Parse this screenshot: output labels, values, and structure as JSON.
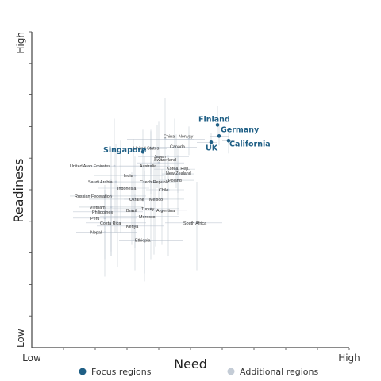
{
  "chart_data": {
    "type": "scatter",
    "xlabel": "Need",
    "ylabel": "Readiness",
    "xlim": [
      0,
      10
    ],
    "ylim": [
      0,
      10
    ],
    "x_ticks": [
      {
        "value": 0,
        "label": "Low"
      },
      {
        "value": 5,
        "label": "Need"
      },
      {
        "value": 10,
        "label": "High"
      }
    ],
    "y_ticks": [
      {
        "value": 0,
        "label": "Low"
      },
      {
        "value": 10,
        "label": "High"
      }
    ],
    "colors": {
      "focus": "#1f5f85",
      "additional": "#c4ccd6",
      "axis": "#444444",
      "error": "#b4bec9"
    },
    "legend": {
      "position": "bottom",
      "entries": [
        {
          "name": "Focus regions",
          "group": "focus"
        },
        {
          "name": "Additional regions",
          "group": "additional"
        }
      ]
    },
    "series": [
      {
        "name": "Focus regions",
        "group": "focus",
        "points": [
          {
            "label": "Finland",
            "x": 5.85,
            "y": 7.05,
            "xerr": [
              0.1,
              0.1
            ],
            "yerr": [
              0.3,
              0.6
            ]
          },
          {
            "label": "Germany",
            "x": 5.9,
            "y": 6.7,
            "xerr": [
              0.3,
              0.3
            ],
            "yerr": [
              0.3,
              0.4
            ]
          },
          {
            "label": "UK",
            "x": 5.65,
            "y": 6.5,
            "xerr": [
              0.45,
              0.2
            ],
            "yerr": [
              0.2,
              0.3
            ]
          },
          {
            "label": "California",
            "x": 6.2,
            "y": 6.55,
            "xerr": [
              0.2,
              0.2
            ],
            "yerr": [
              0.4,
              0.3
            ]
          },
          {
            "label": "Singapore",
            "x": 3.5,
            "y": 6.2,
            "xerr": [
              0.7,
              0.6
            ],
            "yerr": [
              1.6,
              0.7
            ]
          }
        ]
      },
      {
        "name": "Additional regions",
        "group": "additional",
        "points": [
          {
            "label": "China",
            "x": 4.2,
            "y": 6.6,
            "xerr": [
              1.2,
              0.9
            ],
            "yerr": [
              1.3,
              1.3
            ]
          },
          {
            "label": "Norway",
            "x": 4.95,
            "y": 6.6,
            "xerr": [
              0.8,
              0.5
            ],
            "yerr": [
              0.5,
              0.4
            ]
          },
          {
            "label": "United States",
            "x": 3.75,
            "y": 6.3,
            "xerr": [
              0.8,
              0.5
            ],
            "yerr": [
              0.8,
              0.6
            ]
          },
          {
            "label": "Canada",
            "x": 4.5,
            "y": 6.35,
            "xerr": [
              0.8,
              0.7
            ],
            "yerr": [
              0.7,
              0.9
            ]
          },
          {
            "label": "Japan",
            "x": 3.95,
            "y": 6.05,
            "xerr": [
              0.6,
              1.0
            ],
            "yerr": [
              1.0,
              1.0
            ]
          },
          {
            "label": "Switzerland",
            "x": 4.0,
            "y": 5.85,
            "xerr": [
              0.7,
              0.8
            ],
            "yerr": [
              1.1,
              1.3
            ]
          },
          {
            "label": "United Arab Emirates",
            "x": 2.6,
            "y": 5.75,
            "xerr": [
              0.9,
              0.8
            ],
            "yerr": [
              2.1,
              1.5
            ]
          },
          {
            "label": "Australia",
            "x": 3.75,
            "y": 5.75,
            "xerr": [
              1.0,
              0.6
            ],
            "yerr": [
              0.9,
              1.1
            ]
          },
          {
            "label": "Korea, Rep.",
            "x": 4.55,
            "y": 5.65,
            "xerr": [
              0.7,
              0.6
            ],
            "yerr": [
              0.6,
              1.1
            ]
          },
          {
            "label": "New Zealand",
            "x": 4.6,
            "y": 5.5,
            "xerr": [
              0.5,
              0.5
            ],
            "yerr": [
              0.6,
              0.8
            ]
          },
          {
            "label": "India",
            "x": 3.25,
            "y": 5.45,
            "xerr": [
              1.3,
              0.9
            ],
            "yerr": [
              2.3,
              0.6
            ]
          },
          {
            "label": "Saudi Arabia",
            "x": 2.65,
            "y": 5.25,
            "xerr": [
              0.8,
              0.6
            ],
            "yerr": [
              1.6,
              1.2
            ]
          },
          {
            "label": "Czech Republic",
            "x": 3.85,
            "y": 5.25,
            "xerr": [
              0.6,
              0.7
            ],
            "yerr": [
              2.3,
              0.7
            ]
          },
          {
            "label": "Poland",
            "x": 4.6,
            "y": 5.3,
            "xerr": [
              0.6,
              0.5
            ],
            "yerr": [
              1.1,
              0.8
            ]
          },
          {
            "label": "Indonesia",
            "x": 2.8,
            "y": 5.05,
            "xerr": [
              0.7,
              0.9
            ],
            "yerr": [
              1.4,
              1.5
            ]
          },
          {
            "label": "Chile",
            "x": 4.3,
            "y": 5.0,
            "xerr": [
              0.7,
              0.5
            ],
            "yerr": [
              2.1,
              1.1
            ]
          },
          {
            "label": "Russian Federation",
            "x": 2.5,
            "y": 4.8,
            "xerr": [
              1.3,
              1.1
            ],
            "yerr": [
              1.9,
              1.5
            ]
          },
          {
            "label": "Ukraine",
            "x": 3.2,
            "y": 4.7,
            "xerr": [
              1.4,
              1.1
            ],
            "yerr": [
              1.3,
              1.9
            ]
          },
          {
            "label": "Mexico",
            "x": 3.9,
            "y": 4.7,
            "xerr": [
              1.0,
              0.9
            ],
            "yerr": [
              1.5,
              1.4
            ]
          },
          {
            "label": "Vietnam",
            "x": 2.5,
            "y": 4.45,
            "xerr": [
              1.0,
              1.0
            ],
            "yerr": [
              1.4,
              0.9
            ]
          },
          {
            "label": "Philippines",
            "x": 2.5,
            "y": 4.3,
            "xerr": [
              1.2,
              1.0
            ],
            "yerr": [
              1.4,
              1.0
            ]
          },
          {
            "label": "Brazil",
            "x": 3.15,
            "y": 4.35,
            "xerr": [
              1.2,
              1.2
            ],
            "yerr": [
              1.1,
              1.2
            ]
          },
          {
            "label": "Turkey",
            "x": 3.75,
            "y": 4.4,
            "xerr": [
              1.5,
              0.9
            ],
            "yerr": [
              1.6,
              1.5
            ]
          },
          {
            "label": "Argentina",
            "x": 4.1,
            "y": 4.35,
            "xerr": [
              0.5,
              0.8
            ],
            "yerr": [
              1.1,
              1.3
            ]
          },
          {
            "label": "Morocco",
            "x": 3.55,
            "y": 4.15,
            "xerr": [
              1.4,
              1.1
            ],
            "yerr": [
              1.8,
              1.9
            ]
          },
          {
            "label": "Peru",
            "x": 2.3,
            "y": 4.1,
            "xerr": [
              1.0,
              1.0
            ],
            "yerr": [
              1.3,
              0.9
            ]
          },
          {
            "label": "Costa Rica",
            "x": 2.7,
            "y": 3.95,
            "xerr": [
              1.0,
              0.9
            ],
            "yerr": [
              1.4,
              1.2
            ]
          },
          {
            "label": "Kenya",
            "x": 3.25,
            "y": 3.85,
            "xerr": [
              1.2,
              0.9
            ],
            "yerr": [
              1.4,
              1.0
            ]
          },
          {
            "label": "South Africa",
            "x": 5.2,
            "y": 3.95,
            "xerr": [
              1.0,
              0.8
            ],
            "yerr": [
              1.5,
              1.3
            ]
          },
          {
            "label": "Nepal",
            "x": 2.3,
            "y": 3.65,
            "xerr": [
              0.9,
              1.0
            ],
            "yerr": [
              1.4,
              1.5
            ]
          },
          {
            "label": "Ethiopia",
            "x": 3.55,
            "y": 3.4,
            "xerr": [
              0.8,
              1.2
            ],
            "yerr": [
              1.3,
              2.2
            ]
          }
        ]
      }
    ]
  }
}
